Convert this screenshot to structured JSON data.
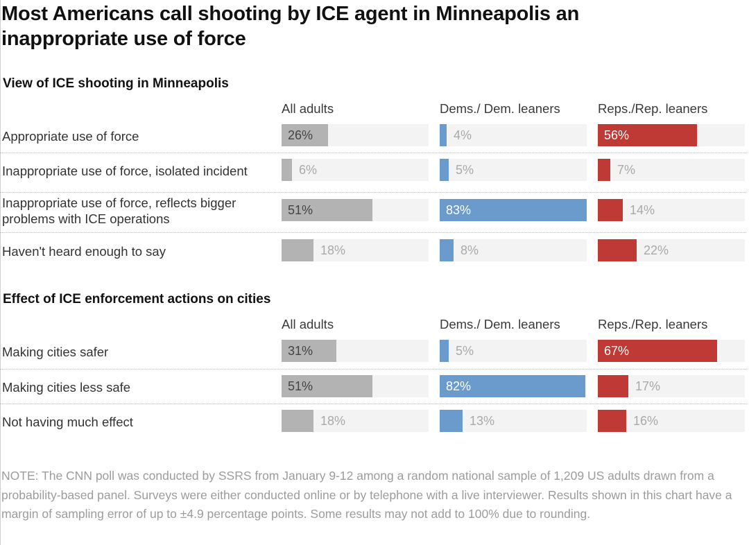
{
  "title": "Most Americans call shooting by ICE agent in Minneapolis an inappropriate use of force",
  "colors": {
    "all_adults": "#b3b3b3",
    "dems": "#6b9bcd",
    "reps": "#bf3a34",
    "track": "#f3f3f3"
  },
  "chart_data": [
    {
      "type": "bar",
      "orientation": "horizontal",
      "title": "View of ICE shooting in Minneapolis",
      "xlim": [
        0,
        100
      ],
      "unit": "%",
      "categories": [
        "Appropriate use of force",
        "Inappropriate use of force, isolated incident",
        "Inappropriate use of force, reflects bigger problems with ICE operations",
        "Haven't heard enough to say"
      ],
      "series": [
        {
          "name": "All adults",
          "values": [
            26,
            6,
            51,
            18
          ]
        },
        {
          "name": "Dems./ Dem. leaners",
          "values": [
            4,
            5,
            83,
            8
          ]
        },
        {
          "name": "Reps./Rep. leaners",
          "values": [
            56,
            7,
            14,
            22
          ]
        }
      ]
    },
    {
      "type": "bar",
      "orientation": "horizontal",
      "title": "Effect of ICE enforcement actions on cities",
      "xlim": [
        0,
        100
      ],
      "unit": "%",
      "categories": [
        "Making cities safer",
        "Making cities less safe",
        "Not having much effect"
      ],
      "series": [
        {
          "name": "All adults",
          "values": [
            31,
            51,
            18
          ]
        },
        {
          "name": "Dems./ Dem. leaners",
          "values": [
            5,
            82,
            13
          ]
        },
        {
          "name": "Reps./Rep. leaners",
          "values": [
            67,
            17,
            16
          ]
        }
      ]
    }
  ],
  "note": "NOTE: The CNN poll was conducted by SSRS from January 9-12 among a random national sample of 1,209 US adults drawn from a probability-based panel. Surveys were either conducted online or by telephone with a live interviewer. Results shown in this chart have a margin of sampling error of up to ±4.9 percentage points. Some results may not add to 100% due to rounding."
}
